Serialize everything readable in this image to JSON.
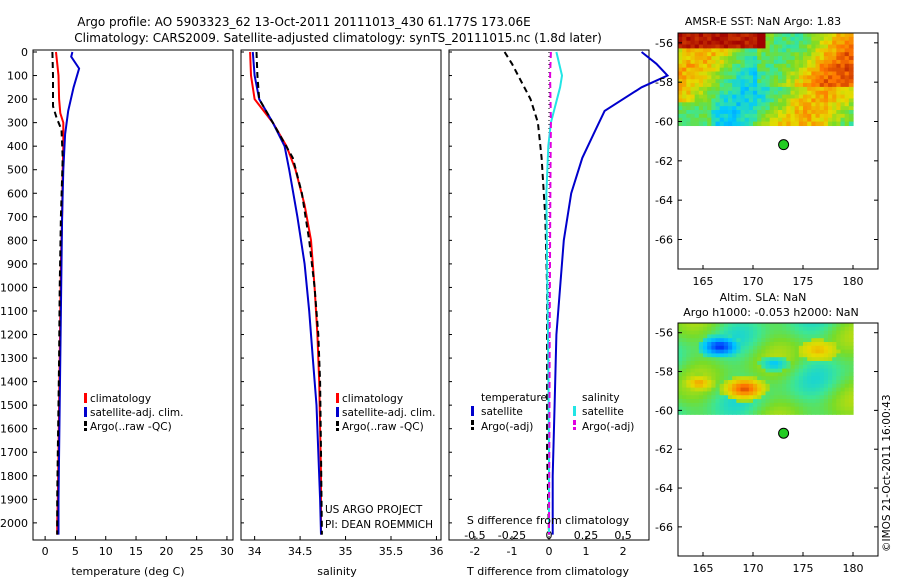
{
  "title": {
    "line1": "Argo profile: AO 5903323_62 13-Oct-2011 20111013_430 61.177S 173.06E",
    "line2": "Climatology: CARS2009. Satellite-adjusted climatology: synTS_20111015.nc (1.8d later)"
  },
  "colors": {
    "climatology": "#ff0000",
    "satellite": "#0000cc",
    "argo": "#000000",
    "salinity_satellite": "#22e5e5",
    "salinity_argo": "#e000e0"
  },
  "chart_data": [
    {
      "type": "line",
      "id": "temperature",
      "xlabel": "temperature (deg C)",
      "ylabel": "",
      "xlim": [
        -2,
        31
      ],
      "ylim": [
        2060,
        0
      ],
      "xticks": [
        "0",
        "5",
        "10",
        "15",
        "20",
        "25",
        "30"
      ],
      "xtick_values": [
        0,
        5,
        10,
        15,
        20,
        25,
        30
      ],
      "yticks": [
        "0",
        "100",
        "200",
        "300",
        "400",
        "500",
        "600",
        "700",
        "800",
        "900",
        "1000",
        "1100",
        "1200",
        "1300",
        "1400",
        "1500",
        "1600",
        "1700",
        "1800",
        "1900",
        "2000"
      ],
      "ytick_values": [
        0,
        100,
        200,
        300,
        400,
        500,
        600,
        700,
        800,
        900,
        1000,
        1100,
        1200,
        1300,
        1400,
        1500,
        1600,
        1700,
        1800,
        1900,
        2000
      ],
      "legend": [
        "climatology",
        "satellite-adj. clim.",
        "Argo(..raw -QC)"
      ],
      "series": [
        {
          "name": "climatology",
          "color": "#ff0000",
          "dash": "",
          "x": [
            1.8,
            2.2,
            2.3,
            2.5,
            3.0,
            3.0,
            2.9,
            2.8,
            2.6,
            2.5,
            2.4,
            2.3,
            2.2,
            2.1,
            2.0,
            2.0
          ],
          "y": [
            0,
            100,
            200,
            260,
            300,
            400,
            500,
            700,
            900,
            1100,
            1300,
            1500,
            1700,
            1900,
            2000,
            2050
          ]
        },
        {
          "name": "satellite-adj. clim.",
          "color": "#0000cc",
          "dash": "",
          "x": [
            4.5,
            4.3,
            5.6,
            4.7,
            3.8,
            3.3,
            3.0,
            2.8,
            2.7,
            2.6,
            2.5,
            2.4,
            2.3,
            2.2,
            2.2
          ],
          "y": [
            0,
            20,
            70,
            150,
            250,
            350,
            500,
            700,
            900,
            1100,
            1300,
            1500,
            1700,
            1900,
            2050
          ]
        },
        {
          "name": "Argo(..raw -QC)",
          "color": "#000000",
          "dash": "6,4",
          "x": [
            1.2,
            1.3,
            1.3,
            1.9,
            2.7,
            2.9,
            2.6,
            2.4,
            2.3,
            2.2,
            2.1,
            2.0,
            2.0
          ],
          "y": [
            0,
            100,
            230,
            280,
            330,
            450,
            700,
            1000,
            1300,
            1500,
            1700,
            1900,
            2050
          ]
        }
      ]
    },
    {
      "type": "line",
      "id": "salinity",
      "xlabel": "salinity",
      "ylabel": "",
      "xlim": [
        33.85,
        36.05
      ],
      "ylim": [
        2060,
        0
      ],
      "xticks": [
        "34",
        "34.5",
        "35",
        "35.5",
        "36"
      ],
      "xtick_values": [
        34,
        34.5,
        35,
        35.5,
        36
      ],
      "legend": [
        "climatology",
        "satellite-adj. clim.",
        "Argo(..raw -QC)"
      ],
      "annotations": [
        "US ARGO PROJECT",
        "PI: DEAN ROEMMICH"
      ],
      "series": [
        {
          "name": "climatology",
          "color": "#ff0000",
          "dash": "",
          "x": [
            33.95,
            33.96,
            34.0,
            34.2,
            34.35,
            34.45,
            34.55,
            34.62,
            34.66,
            34.69,
            34.71,
            34.72,
            34.73,
            34.73
          ],
          "y": [
            0,
            100,
            200,
            300,
            400,
            500,
            650,
            800,
            1000,
            1200,
            1400,
            1600,
            1800,
            2050
          ]
        },
        {
          "name": "satellite-adj. clim.",
          "color": "#0000cc",
          "dash": "",
          "x": [
            33.98,
            34.0,
            34.05,
            34.2,
            34.33,
            34.38,
            34.47,
            34.55,
            34.6,
            34.64,
            34.68,
            34.7,
            34.72,
            34.73
          ],
          "y": [
            0,
            100,
            200,
            300,
            400,
            500,
            700,
            900,
            1100,
            1300,
            1500,
            1700,
            1900,
            2050
          ]
        },
        {
          "name": "Argo(..raw -QC)",
          "color": "#000000",
          "dash": "6,4",
          "x": [
            34.02,
            34.03,
            34.05,
            34.2,
            34.42,
            34.52,
            34.6,
            34.66,
            34.7,
            34.72,
            34.73,
            34.74
          ],
          "y": [
            0,
            100,
            200,
            300,
            450,
            600,
            800,
            1000,
            1200,
            1400,
            1700,
            2050
          ]
        }
      ]
    },
    {
      "type": "line",
      "id": "differences",
      "xlabel": "T difference from climatology",
      "xlabel_top": "S difference from climatology",
      "xlim": [
        -2.7,
        2.7
      ],
      "ylim": [
        2060,
        0
      ],
      "xticks": [
        "-2",
        "-1",
        "0",
        "1",
        "2"
      ],
      "xtick_values": [
        -2,
        -1,
        0,
        1,
        2
      ],
      "sticks": [
        "-0.5",
        "-0.25",
        "0",
        "0.25",
        "0.5"
      ],
      "legend_left_title": "temperature",
      "legend_left": [
        "satellite",
        "Argo(-adj)"
      ],
      "legend_right_title": "salinity",
      "legend_right": [
        "satellite",
        "Argo(-adj)"
      ],
      "series": [
        {
          "name": "temperature satellite",
          "color": "#0000cc",
          "dash": "",
          "x": [
            2.5,
            2.9,
            3.2,
            2.5,
            1.5,
            1.2,
            0.9,
            0.6,
            0.4,
            0.3,
            0.2,
            0.15,
            0.1,
            0.1
          ],
          "y": [
            0,
            50,
            100,
            150,
            250,
            350,
            450,
            600,
            800,
            1000,
            1200,
            1500,
            1800,
            2050
          ]
        },
        {
          "name": "temperature Argo(-adj)",
          "color": "#000000",
          "dash": "6,4",
          "x": [
            -1.2,
            -1.0,
            -0.5,
            -0.3,
            -0.2,
            -0.1,
            -0.05,
            -0.05,
            -0.05,
            0.0
          ],
          "y": [
            0,
            50,
            200,
            300,
            450,
            700,
            1000,
            1300,
            1700,
            2050
          ]
        },
        {
          "name": "salinity satellite",
          "color": "#22e5e5",
          "dash": "",
          "x": [
            0.2,
            0.35,
            0.3,
            0.05,
            -0.02,
            -0.07,
            -0.05,
            -0.02,
            0.0,
            0.0
          ],
          "y": [
            0,
            100,
            150,
            300,
            400,
            600,
            900,
            1300,
            1700,
            2050
          ]
        },
        {
          "name": "salinity Argo(-adj)",
          "color": "#e000e0",
          "dash": "6,4",
          "x": [
            0.05,
            0.03,
            0.05,
            0.04,
            0.03,
            0.02,
            0.01,
            0.0
          ],
          "y": [
            0,
            100,
            300,
            500,
            800,
            1200,
            1600,
            2050
          ]
        }
      ]
    },
    {
      "type": "heatmap",
      "id": "sst-map",
      "title": "AMSR-E SST: NaN Argo: 1.83",
      "xticks": [
        "165",
        "170",
        "175",
        "180"
      ],
      "yticks": [
        "-56",
        "-58",
        "-60",
        "-62",
        "-64",
        "-66"
      ],
      "xlim": [
        162.5,
        182.5
      ],
      "ylim": [
        -55.5,
        -67.5
      ],
      "data_extent": {
        "lon": [
          162.5,
          180
        ],
        "lat": [
          -55.5,
          -60.2
        ]
      },
      "marker": {
        "lon": 173.06,
        "lat": -61.177
      }
    },
    {
      "type": "heatmap",
      "id": "sla-map",
      "title_line1": "Altim. SLA: NaN",
      "title_line2": "Argo h1000: -0.053 h2000: NaN",
      "xticks": [
        "165",
        "170",
        "175",
        "180"
      ],
      "yticks": [
        "-56",
        "-58",
        "-60",
        "-62",
        "-64",
        "-66"
      ],
      "xlim": [
        162.5,
        182.5
      ],
      "ylim": [
        -55.5,
        -67.5
      ],
      "data_extent": {
        "lon": [
          162.5,
          180
        ],
        "lat": [
          -55.5,
          -60.2
        ]
      },
      "marker": {
        "lon": 173.06,
        "lat": -61.177
      }
    }
  ],
  "footer": {
    "credit": "©IMOS 21-Oct-2011 16:00:43"
  }
}
